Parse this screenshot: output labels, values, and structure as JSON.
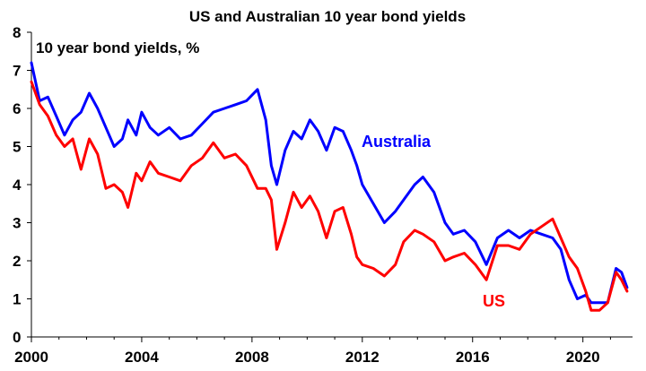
{
  "chart_data": {
    "type": "line",
    "title": "US and Australian 10 year bond yields",
    "subtitle": "10 year bond yields, %",
    "xlabel": "",
    "ylabel": "",
    "xlim": [
      2000,
      2021.8
    ],
    "ylim": [
      0,
      8
    ],
    "x_ticks": [
      2000,
      2004,
      2008,
      2012,
      2016,
      2020
    ],
    "x_tick_labels": [
      "2000",
      "2004",
      "2008",
      "2012",
      "2016",
      "2020"
    ],
    "y_ticks": [
      0,
      1,
      2,
      3,
      4,
      5,
      6,
      7,
      8
    ],
    "y_tick_labels": [
      "0",
      "1",
      "2",
      "3",
      "4",
      "5",
      "6",
      "7",
      "8"
    ],
    "grid": false,
    "series": [
      {
        "name": "Australia",
        "color": "#0000ff",
        "x": [
          2000.0,
          2000.3,
          2000.6,
          2000.9,
          2001.2,
          2001.5,
          2001.8,
          2002.1,
          2002.4,
          2002.7,
          2003.0,
          2003.3,
          2003.5,
          2003.8,
          2004.0,
          2004.3,
          2004.6,
          2005.0,
          2005.4,
          2005.8,
          2006.2,
          2006.6,
          2007.0,
          2007.4,
          2007.8,
          2008.2,
          2008.5,
          2008.7,
          2008.9,
          2009.2,
          2009.5,
          2009.8,
          2010.1,
          2010.4,
          2010.7,
          2011.0,
          2011.3,
          2011.6,
          2011.8,
          2012.0,
          2012.4,
          2012.8,
          2013.2,
          2013.5,
          2013.9,
          2014.2,
          2014.6,
          2015.0,
          2015.3,
          2015.7,
          2016.1,
          2016.5,
          2016.9,
          2017.3,
          2017.7,
          2018.1,
          2018.5,
          2018.9,
          2019.2,
          2019.5,
          2019.8,
          2020.1,
          2020.3,
          2020.6,
          2020.9,
          2021.2,
          2021.4,
          2021.6
        ],
        "values": [
          7.2,
          6.2,
          6.3,
          5.8,
          5.3,
          5.7,
          5.9,
          6.4,
          6.0,
          5.5,
          5.0,
          5.2,
          5.7,
          5.3,
          5.9,
          5.5,
          5.3,
          5.5,
          5.2,
          5.3,
          5.6,
          5.9,
          6.0,
          6.1,
          6.2,
          6.5,
          5.7,
          4.5,
          4.0,
          4.9,
          5.4,
          5.2,
          5.7,
          5.4,
          4.9,
          5.5,
          5.4,
          4.9,
          4.5,
          4.0,
          3.5,
          3.0,
          3.3,
          3.6,
          4.0,
          4.2,
          3.8,
          3.0,
          2.7,
          2.8,
          2.5,
          1.9,
          2.6,
          2.8,
          2.6,
          2.8,
          2.7,
          2.6,
          2.3,
          1.5,
          1.0,
          1.1,
          0.9,
          0.9,
          0.9,
          1.8,
          1.7,
          1.3
        ]
      },
      {
        "name": "US",
        "color": "#ff0000",
        "x": [
          2000.0,
          2000.3,
          2000.6,
          2000.9,
          2001.2,
          2001.5,
          2001.8,
          2002.1,
          2002.4,
          2002.7,
          2003.0,
          2003.3,
          2003.5,
          2003.8,
          2004.0,
          2004.3,
          2004.6,
          2005.0,
          2005.4,
          2005.8,
          2006.2,
          2006.6,
          2007.0,
          2007.4,
          2007.8,
          2008.2,
          2008.5,
          2008.7,
          2008.9,
          2009.2,
          2009.5,
          2009.8,
          2010.1,
          2010.4,
          2010.7,
          2011.0,
          2011.3,
          2011.6,
          2011.8,
          2012.0,
          2012.4,
          2012.8,
          2013.2,
          2013.5,
          2013.9,
          2014.2,
          2014.6,
          2015.0,
          2015.3,
          2015.7,
          2016.1,
          2016.5,
          2016.9,
          2017.3,
          2017.7,
          2018.1,
          2018.5,
          2018.9,
          2019.2,
          2019.5,
          2019.8,
          2020.1,
          2020.3,
          2020.6,
          2020.9,
          2021.2,
          2021.4,
          2021.6
        ],
        "values": [
          6.7,
          6.1,
          5.8,
          5.3,
          5.0,
          5.2,
          4.4,
          5.2,
          4.8,
          3.9,
          4.0,
          3.8,
          3.4,
          4.3,
          4.1,
          4.6,
          4.3,
          4.2,
          4.1,
          4.5,
          4.7,
          5.1,
          4.7,
          4.8,
          4.5,
          3.9,
          3.9,
          3.6,
          2.3,
          3.0,
          3.8,
          3.4,
          3.7,
          3.3,
          2.6,
          3.3,
          3.4,
          2.7,
          2.1,
          1.9,
          1.8,
          1.6,
          1.9,
          2.5,
          2.8,
          2.7,
          2.5,
          2.0,
          2.1,
          2.2,
          1.9,
          1.5,
          2.4,
          2.4,
          2.3,
          2.7,
          2.9,
          3.1,
          2.6,
          2.1,
          1.8,
          1.2,
          0.7,
          0.7,
          0.9,
          1.7,
          1.5,
          1.2
        ]
      }
    ],
    "annotations": {
      "australia_label": "Australia",
      "us_label": "US"
    }
  }
}
